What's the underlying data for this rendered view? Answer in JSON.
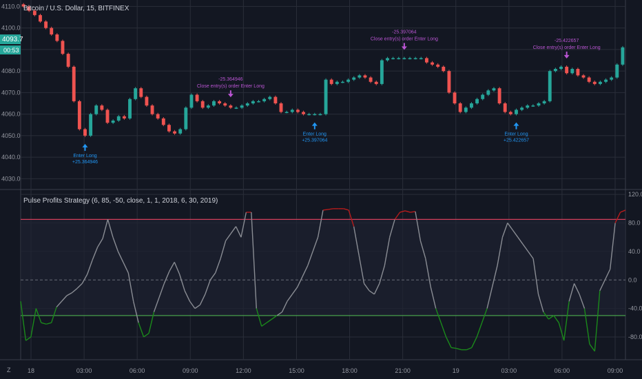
{
  "colors": {
    "background": "#131722",
    "grid": "#2a2e39",
    "up": "#26a69a",
    "down": "#ef5350",
    "buy_signal": "#2196f3",
    "exit_signal": "#ba55d3",
    "osc_neutral": "#8a8d94",
    "osc_high": "#b71c1c",
    "osc_low": "#1b8a1b",
    "upper_line": "#d23f5a",
    "lower_line": "#4caf50",
    "price_badge": "#26a69a"
  },
  "main_chart": {
    "title": "Bitcoin / U.S. Dollar, 15, BITFINEX",
    "price_badge": "4093.7",
    "countdown_badge": "00:53",
    "icons": [
      "buy-arrow-icon",
      "exit-arrow-icon",
      "z-icon"
    ]
  },
  "indicator": {
    "title": "Pulse Profits Strategy (6, 85, -50, close, 1, 1, 2018, 6, 30, 2019)"
  },
  "signals": [
    {
      "type": "entry",
      "label": "Enter Long",
      "value": "+25.364946"
    },
    {
      "type": "exit",
      "label": "Close entry(s) order Enter Long",
      "value": "-25.364946"
    },
    {
      "type": "entry",
      "label": "Enter Long",
      "value": "+25.397064"
    },
    {
      "type": "exit",
      "label": "Close entry(s) order Enter Long",
      "value": "-25.397064"
    },
    {
      "type": "entry",
      "label": "Enter Long",
      "value": "+25.422657"
    },
    {
      "type": "exit",
      "label": "Close entry(s) order Enter Long",
      "value": "-25.422657"
    }
  ],
  "time_axis": {
    "labels": [
      "18",
      "03:00",
      "06:00",
      "09:00",
      "12:00",
      "15:00",
      "18:00",
      "21:00",
      "19",
      "03:00",
      "06:00",
      "09:00"
    ],
    "corner": "Z"
  },
  "chart_data": [
    {
      "type": "candlestick",
      "title": "Bitcoin / U.S. Dollar, 15, BITFINEX",
      "ylim": [
        4025,
        4113
      ],
      "y_ticks": [
        4030,
        4040,
        4050,
        4060,
        4070,
        4080,
        4090,
        4100,
        4110
      ],
      "y_tick_labels": [
        "4030.0",
        "4040.0",
        "4050.0",
        "4060.0",
        "4070.0",
        "4080.0",
        "4090.0",
        "4100.0",
        "4110.0"
      ],
      "x_labels": [
        "18",
        "03:00",
        "06:00",
        "09:00",
        "12:00",
        "15:00",
        "18:00",
        "21:00",
        "19",
        "03:00",
        "06:00",
        "09:00"
      ],
      "closes": [
        4110,
        4108,
        4106,
        4103,
        4100,
        4097,
        4094,
        4088,
        4082,
        4066,
        4053,
        4050,
        4060,
        4064,
        4062,
        4056,
        4057,
        4059,
        4058,
        4067,
        4072,
        4068,
        4064,
        4060,
        4058,
        4055,
        4052,
        4051,
        4053,
        4063,
        4069,
        4066,
        4063,
        4064,
        4066,
        4065,
        4064,
        4063,
        4063,
        4064,
        4065,
        4066,
        4066,
        4067,
        4068,
        4065,
        4061,
        4061,
        4062,
        4061,
        4060,
        4060,
        4060,
        4060,
        4076,
        4074,
        4075,
        4075,
        4076,
        4077,
        4078,
        4077,
        4075,
        4074,
        4085,
        4086,
        4086,
        4086,
        4086,
        4086,
        4086,
        4086,
        4084,
        4083,
        4082,
        4080,
        4070,
        4065,
        4061,
        4063,
        4065,
        4067,
        4069,
        4071,
        4072,
        4065,
        4061,
        4060,
        4062,
        4063,
        4064,
        4064,
        4065,
        4066,
        4080,
        4081,
        4082,
        4079,
        4081,
        4078,
        4077,
        4075,
        4074,
        4075,
        4076,
        4077,
        4083,
        4091
      ],
      "series": [
        {
          "name": "entries",
          "values": [
            4050,
            4060,
            4066
          ]
        },
        {
          "name": "exits",
          "values": [
            4062,
            4076,
            4079
          ]
        }
      ]
    },
    {
      "type": "line",
      "title": "Pulse Profits Strategy (6, 85, -50, close, 1, 1, 2018, 6, 30, 2019)",
      "ylim": [
        -110,
        125
      ],
      "y_ticks": [
        120,
        80,
        40,
        0,
        -40,
        -80
      ],
      "y_tick_labels": [
        "120.0",
        "80.0",
        "40.0",
        "0.0",
        "-40.0",
        "-80.0"
      ],
      "upper_level": 85,
      "lower_level": -50,
      "values": [
        -30,
        -85,
        -80,
        -40,
        -60,
        -62,
        -60,
        -38,
        -30,
        -22,
        -18,
        -12,
        -5,
        8,
        28,
        46,
        58,
        85,
        60,
        40,
        25,
        10,
        -30,
        -60,
        -80,
        -75,
        -45,
        -25,
        -5,
        12,
        25,
        8,
        -15,
        -30,
        -40,
        -35,
        -20,
        0,
        10,
        30,
        55,
        65,
        75,
        60,
        95,
        95,
        -40,
        -65,
        -60,
        -55,
        -50,
        -45,
        -30,
        -20,
        -10,
        5,
        20,
        40,
        60,
        98,
        99,
        100,
        100,
        100,
        98,
        75,
        35,
        -5,
        -15,
        -20,
        -5,
        20,
        60,
        85,
        95,
        97,
        95,
        96,
        55,
        30,
        -10,
        -40,
        -60,
        -80,
        -95,
        -96,
        -98,
        -98,
        -95,
        -80,
        -60,
        -40,
        -10,
        20,
        60,
        80,
        70,
        60,
        50,
        40,
        30,
        -20,
        -45,
        -55,
        -50,
        -60,
        -85,
        -30,
        -5,
        -20,
        -40,
        -90,
        -100,
        -15,
        0,
        15,
        80,
        95,
        98
      ]
    }
  ]
}
